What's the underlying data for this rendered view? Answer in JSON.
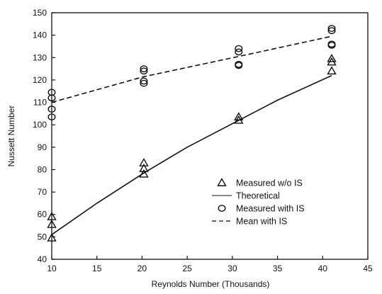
{
  "chart_data": {
    "type": "scatter",
    "title": "",
    "xlabel": "Reynolds Number (Thousands)",
    "ylabel": "Nussett Number",
    "xlim": [
      10,
      45
    ],
    "ylim": [
      40,
      150
    ],
    "xticks": [
      10,
      15,
      20,
      25,
      30,
      35,
      40,
      45
    ],
    "yticks": [
      40,
      50,
      60,
      70,
      80,
      90,
      100,
      110,
      120,
      130,
      140,
      150
    ],
    "grid": false,
    "legend_position": "lower-right",
    "series": [
      {
        "name": "Measured w/o IS",
        "kind": "points",
        "marker": "triangle",
        "points": [
          [
            10,
            49.5
          ],
          [
            10,
            55.5
          ],
          [
            10,
            59
          ],
          [
            20.2,
            78
          ],
          [
            20.2,
            80.5
          ],
          [
            20.2,
            83
          ],
          [
            30.7,
            102
          ],
          [
            30.7,
            103.5
          ],
          [
            41,
            124
          ],
          [
            41,
            128
          ],
          [
            41,
            129.5
          ]
        ]
      },
      {
        "name": "Theoretical",
        "kind": "line",
        "dash": "solid",
        "points": [
          [
            10,
            51
          ],
          [
            15,
            65
          ],
          [
            20.2,
            78.5
          ],
          [
            25,
            90
          ],
          [
            30.7,
            102
          ],
          [
            35,
            111
          ],
          [
            41,
            122
          ]
        ]
      },
      {
        "name": "Measured with IS",
        "kind": "points",
        "marker": "circle",
        "points": [
          [
            10,
            103.5
          ],
          [
            10,
            107
          ],
          [
            10,
            112
          ],
          [
            10,
            114.5
          ],
          [
            20.2,
            118.5
          ],
          [
            20.2,
            119.5
          ],
          [
            20.2,
            124
          ],
          [
            20.2,
            125
          ],
          [
            30.7,
            126.5
          ],
          [
            30.7,
            127
          ],
          [
            30.7,
            132.5
          ],
          [
            30.7,
            134
          ],
          [
            41,
            135.5
          ],
          [
            41,
            136
          ],
          [
            41,
            142
          ],
          [
            41,
            143
          ]
        ]
      },
      {
        "name": "Mean with IS",
        "kind": "line",
        "dash": "dashed",
        "points": [
          [
            10,
            110
          ],
          [
            20.2,
            121.5
          ],
          [
            30.7,
            130.5
          ],
          [
            41,
            139.5
          ]
        ]
      }
    ]
  }
}
